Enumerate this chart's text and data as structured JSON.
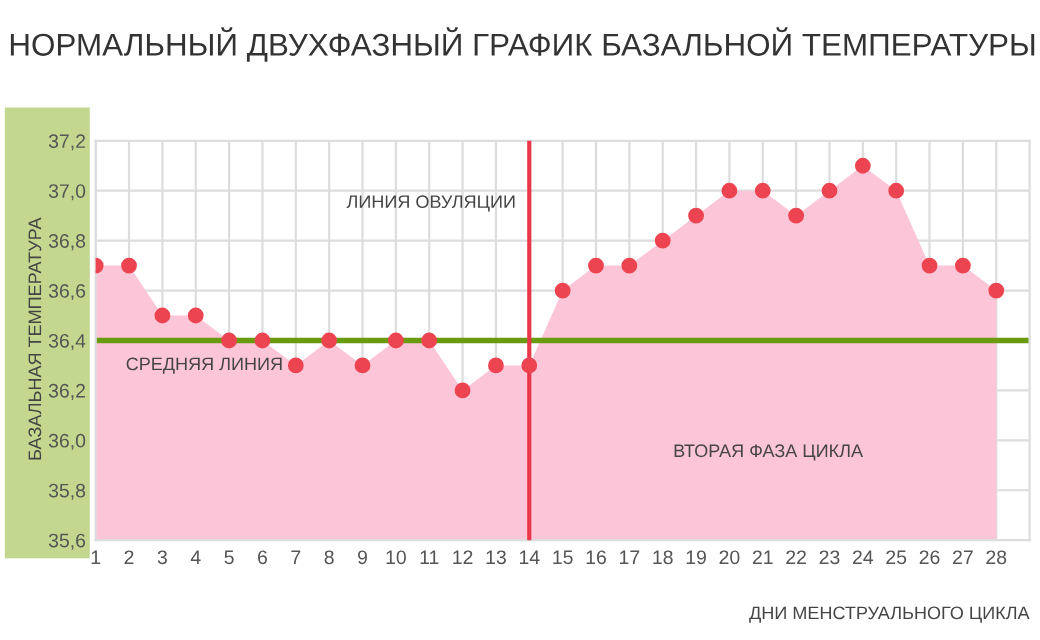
{
  "chart_data": {
    "type": "area",
    "title": "НОРМАЛЬНЫЙ ДВУХФАЗНЫЙ ГРАФИК БАЗАЛЬНОЙ ТЕМПЕРАТУРЫ",
    "xlabel": "ДНИ МЕНСТРУАЛЬНОГО ЦИКЛА",
    "ylabel": "БАЗАЛЬНАЯ ТЕМПЕРАТУРА",
    "x": [
      1,
      2,
      3,
      4,
      5,
      6,
      7,
      8,
      9,
      10,
      11,
      12,
      13,
      14,
      15,
      16,
      17,
      18,
      19,
      20,
      21,
      22,
      23,
      24,
      25,
      26,
      27,
      28
    ],
    "series": [
      {
        "color": "#fcc6d8",
        "values": [
          36.7,
          36.7,
          36.5,
          36.5,
          36.4,
          36.4,
          36.3,
          36.4,
          36.3,
          36.4,
          36.4,
          36.2,
          36.3,
          36.3,
          36.6,
          36.7,
          36.7,
          36.8,
          36.9,
          37.0,
          37.0,
          36.9,
          37.0,
          37.1,
          37.0,
          36.7,
          36.7,
          36.6
        ]
      },
      {
        "type": "scatter",
        "marker": "circle",
        "color": "#ec4450",
        "values": [
          36.7,
          36.7,
          36.5,
          36.5,
          36.4,
          36.4,
          36.3,
          36.4,
          36.3,
          36.4,
          36.4,
          36.2,
          36.3,
          36.3,
          36.6,
          36.7,
          36.7,
          36.8,
          36.9,
          37.0,
          37.0,
          36.9,
          37.0,
          37.1,
          37.0,
          36.7,
          36.7,
          36.6
        ]
      }
    ],
    "xlim": [
      1,
      29
    ],
    "xticks": [
      1,
      2,
      3,
      4,
      5,
      6,
      7,
      8,
      9,
      10,
      11,
      12,
      13,
      14,
      15,
      16,
      17,
      18,
      19,
      20,
      21,
      22,
      23,
      24,
      25,
      26,
      27,
      28
    ],
    "ylim": [
      35.6,
      37.2
    ],
    "yticks": [
      {
        "value": 35.6,
        "label": "35,6"
      },
      {
        "value": 35.8,
        "label": "35,8"
      },
      {
        "value": 36.0,
        "label": "36,0"
      },
      {
        "value": 36.2,
        "label": "36,2"
      },
      {
        "value": 36.4,
        "label": "36,4"
      },
      {
        "value": 36.6,
        "label": "36,6"
      },
      {
        "value": 36.8,
        "label": "36,8"
      },
      {
        "value": 37.0,
        "label": "37,0"
      },
      {
        "value": 37.2,
        "label": "37,2"
      }
    ],
    "ref_lines": [
      {
        "axis": "x",
        "value": 14,
        "label": "ЛИНИЯ ОВУЛЯЦИИ",
        "color": "#e8384a"
      },
      {
        "axis": "y",
        "value": 36.4,
        "label": "СРЕДНЯЯ ЛИНИЯ",
        "color": "#6a9a10"
      }
    ],
    "annotations": [
      "ВТОРАЯ ФАЗА ЦИКЛА"
    ],
    "grid": true,
    "legend": false
  }
}
